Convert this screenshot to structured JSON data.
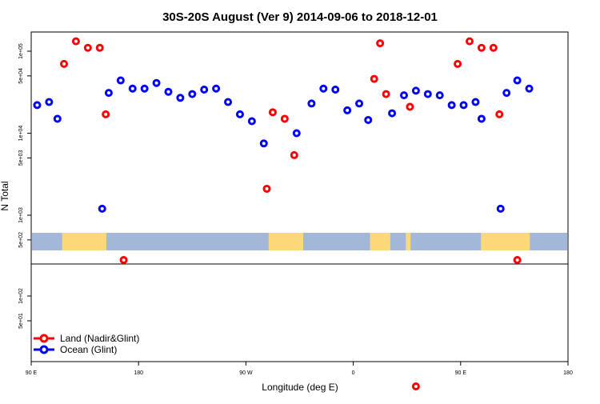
{
  "chart_data": {
    "type": "scatter",
    "title": "30S-20S August (Ver 9)   2014-09-06 to 2018-12-01",
    "xlabel": "Longitude (deg E)",
    "ylabel": "N Total",
    "x_ticks": [
      "90 E",
      "180",
      "90 W",
      "0",
      "90 E",
      "180"
    ],
    "x_range": [
      90,
      540
    ],
    "y_scale": "log",
    "upper_panel": {
      "ylim": [
        150,
        250000
      ],
      "y_ticks": [
        {
          "label": "5e+02",
          "value": 500
        },
        {
          "label": "1e+03",
          "value": 1000
        },
        {
          "label": "5e+03",
          "value": 5000
        },
        {
          "label": "1e+04",
          "value": 10000
        },
        {
          "label": "5e+04",
          "value": 50000
        },
        {
          "label": "1e+05",
          "value": 100000
        }
      ]
    },
    "lower_panel": {
      "ylim": [
        3,
        300
      ],
      "y_ticks": [
        {
          "label": "5e+01",
          "value": 50
        },
        {
          "label": "1e+02",
          "value": 100
        }
      ]
    },
    "series": [
      {
        "name": "Land (Nadir&Glint)",
        "color": "#ff0000",
        "points": [
          {
            "x": 117.5,
            "y": 70000
          },
          {
            "x": 127.5,
            "y": 132000
          },
          {
            "x": 137.5,
            "y": 110000
          },
          {
            "x": 147.5,
            "y": 110000
          },
          {
            "x": 152.5,
            "y": 17000
          },
          {
            "x": 167.5,
            "y": 120,
            "panel": "lower_gap"
          },
          {
            "x": 287.5,
            "y": 2100
          },
          {
            "x": 292.5,
            "y": 18000
          },
          {
            "x": 302.5,
            "y": 15000
          },
          {
            "x": 310.5,
            "y": 5400
          },
          {
            "x": 377.5,
            "y": 46000
          },
          {
            "x": 382.5,
            "y": 125000
          },
          {
            "x": 387.5,
            "y": 30000
          },
          {
            "x": 407.5,
            "y": 21000
          },
          {
            "x": 412.5,
            "y": 8,
            "panel": "lower"
          },
          {
            "x": 447.5,
            "y": 70000
          },
          {
            "x": 457.5,
            "y": 132000
          },
          {
            "x": 467.5,
            "y": 110000
          },
          {
            "x": 477.5,
            "y": 110000
          },
          {
            "x": 482.5,
            "y": 17000
          },
          {
            "x": 497.5,
            "y": 120,
            "panel": "lower_gap"
          }
        ]
      },
      {
        "name": "Ocean (Glint)",
        "color": "#0000ff",
        "points": [
          {
            "x": 95,
            "y": 22000
          },
          {
            "x": 105,
            "y": 24000
          },
          {
            "x": 112,
            "y": 15000
          },
          {
            "x": 149.5,
            "y": 1200
          },
          {
            "x": 155,
            "y": 31000
          },
          {
            "x": 165,
            "y": 44000
          },
          {
            "x": 175,
            "y": 35000
          },
          {
            "x": 185,
            "y": 35000
          },
          {
            "x": 195,
            "y": 41000
          },
          {
            "x": 205,
            "y": 32000
          },
          {
            "x": 215,
            "y": 27000
          },
          {
            "x": 225,
            "y": 30000
          },
          {
            "x": 235,
            "y": 34000
          },
          {
            "x": 245,
            "y": 35000
          },
          {
            "x": 255,
            "y": 24000
          },
          {
            "x": 265,
            "y": 17000
          },
          {
            "x": 275,
            "y": 14000
          },
          {
            "x": 285,
            "y": 7500
          },
          {
            "x": 312.5,
            "y": 10000
          },
          {
            "x": 325,
            "y": 23000
          },
          {
            "x": 335,
            "y": 35000
          },
          {
            "x": 345,
            "y": 34000
          },
          {
            "x": 355,
            "y": 19000
          },
          {
            "x": 365,
            "y": 23000
          },
          {
            "x": 372.5,
            "y": 14500
          },
          {
            "x": 392.5,
            "y": 17500
          },
          {
            "x": 402.5,
            "y": 29000
          },
          {
            "x": 412.5,
            "y": 33000
          },
          {
            "x": 422.5,
            "y": 30000
          },
          {
            "x": 432.5,
            "y": 29000
          },
          {
            "x": 442.5,
            "y": 22000
          },
          {
            "x": 452.5,
            "y": 22000
          },
          {
            "x": 462.5,
            "y": 24000
          },
          {
            "x": 467.5,
            "y": 15000
          },
          {
            "x": 483.5,
            "y": 1200
          },
          {
            "x": 488.5,
            "y": 31000
          },
          {
            "x": 497.5,
            "y": 44000
          },
          {
            "x": 507.5,
            "y": 35000
          }
        ]
      }
    ],
    "legend": {
      "placement": "bottom-left",
      "entries": [
        {
          "label": "Land (Nadir&Glint)",
          "color": "#ff0000"
        },
        {
          "label": "Ocean (Glint)",
          "color": "#0000ff"
        }
      ]
    },
    "map_strip": {
      "ocean_color": "#a3b8d8",
      "land_color": "#fcd87a",
      "land_spans": [
        [
          116,
          153
        ],
        [
          289,
          318
        ],
        [
          374,
          391
        ],
        [
          404,
          408
        ],
        [
          467,
          508
        ]
      ]
    }
  }
}
